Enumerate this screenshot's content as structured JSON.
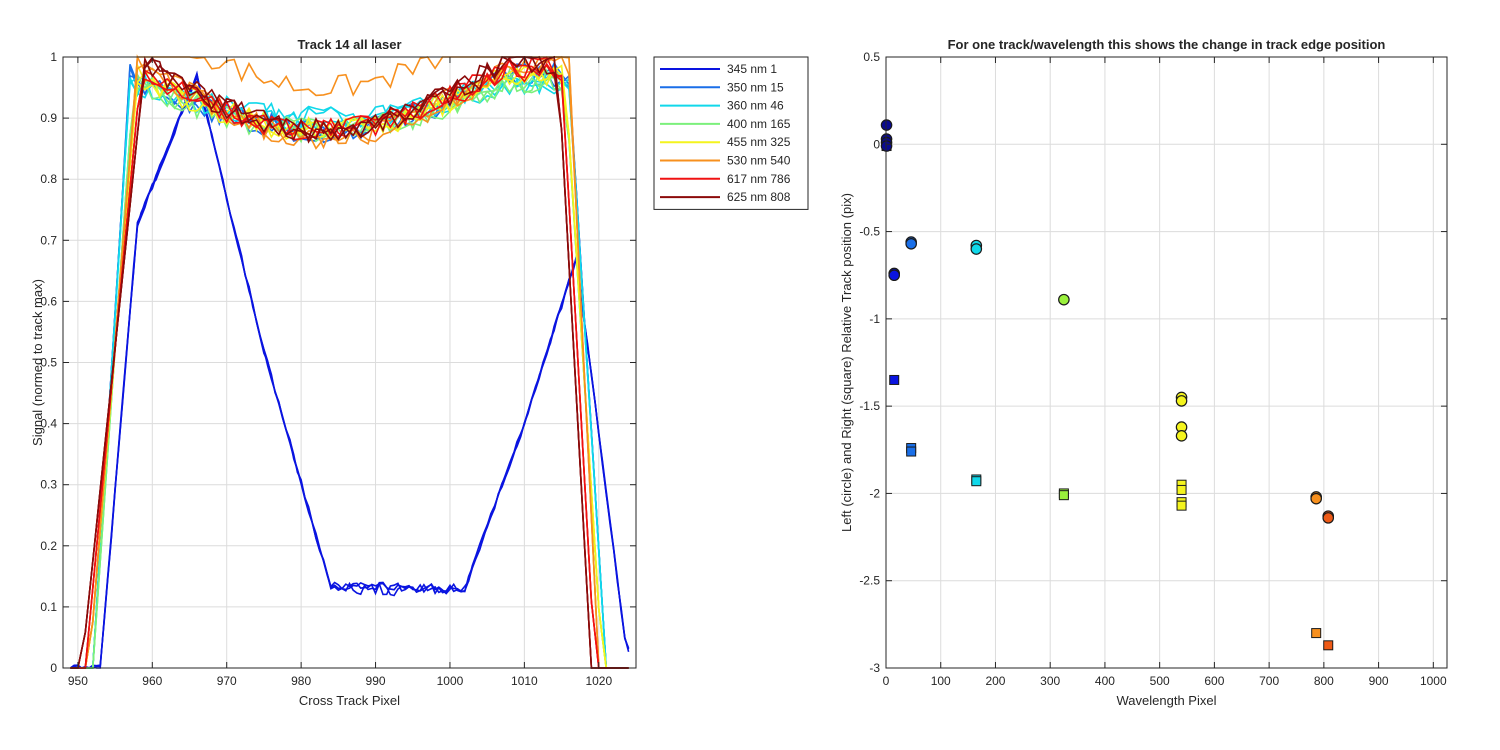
{
  "chart_data": [
    {
      "type": "line",
      "title": "Track 14  all laser",
      "xlabel": "Cross Track Pixel",
      "ylabel": "Signal (normed to track max)",
      "xlim": [
        948,
        1025
      ],
      "ylim": [
        0,
        1
      ],
      "xticks": [
        950,
        960,
        970,
        980,
        990,
        1000,
        1010,
        1020
      ],
      "yticks": [
        0,
        0.1,
        0.2,
        0.3,
        0.4,
        0.5,
        0.6,
        0.7,
        0.8,
        0.9,
        1
      ],
      "grid": true,
      "legend_position": "outside-right",
      "series": [
        {
          "name": "345 nm 1",
          "color": "#0a14e0",
          "profile": {
            "x1": 958,
            "x2": 966,
            "x3": 975,
            "x4": 984,
            "x5": 1002,
            "x6": 1010,
            "x7": 1017,
            "x8": 1023,
            "top": 0.97,
            "bottom": 0.13,
            "x0": 953,
            "xend": 1024,
            "right_peak": 0.67
          }
        },
        {
          "name": "350 nm 15",
          "color": "#1a6fe8",
          "edges": [
            952,
            957,
            1016,
            1021
          ],
          "plateau": 0.88,
          "top": 0.97
        },
        {
          "name": "360 nm 46",
          "color": "#10d8ea",
          "edges": [
            952,
            957,
            1016,
            1021
          ],
          "plateau": 0.9,
          "top": 0.96
        },
        {
          "name": "400 nm 165",
          "color": "#7cf07c",
          "edges": [
            952,
            957.5,
            1015.5,
            1020.5
          ],
          "plateau": 0.88,
          "top": 0.96
        },
        {
          "name": "455 nm 325",
          "color": "#f4f41e",
          "edges": [
            951.5,
            958,
            1015.5,
            1020.5
          ],
          "plateau": 0.88,
          "top": 0.97
        },
        {
          "name": "530 nm 540",
          "color": "#f7901e",
          "edges": [
            951.5,
            958,
            1016,
            1020
          ],
          "plateau": 0.87,
          "top": 0.99
        },
        {
          "name": "617 nm 786",
          "color": "#f01212",
          "edges": [
            951,
            958.5,
            1015,
            1019.5
          ],
          "plateau": 0.88,
          "top": 0.98
        },
        {
          "name": "625 nm 808",
          "color": "#8b0a0a",
          "edges": [
            950.5,
            959,
            1014.5,
            1019
          ],
          "plateau": 0.88,
          "top": 0.99
        }
      ]
    },
    {
      "type": "scatter",
      "title": "For one track/wavelength this shows the change in track edge position",
      "xlabel": "Wavelength Pixel",
      "ylabel": "Left (circle) and Right (square) Relative Track position (pix)",
      "xlim": [
        0,
        1025
      ],
      "ylim": [
        -3,
        0.5
      ],
      "xticks": [
        0,
        100,
        200,
        300,
        400,
        500,
        600,
        700,
        800,
        900,
        1000
      ],
      "yticks": [
        0.5,
        0,
        -0.5,
        -1,
        -1.5,
        -2,
        -2.5,
        -3
      ],
      "ytick_labels": [
        "0.5",
        "0",
        "-0.5",
        "-1",
        "-1.5",
        "-2",
        "-2.5",
        "-3"
      ],
      "grid": true,
      "circles": [
        {
          "x": 1,
          "y": 0.11,
          "color": "#0a0a90"
        },
        {
          "x": 1,
          "y": 0.03,
          "color": "#0a0a90"
        },
        {
          "x": 1,
          "y": 0.01,
          "color": "#0a0a90"
        },
        {
          "x": 1,
          "y": -0.01,
          "color": "#0a0a90"
        },
        {
          "x": 15,
          "y": -0.74,
          "color": "#0a14e0"
        },
        {
          "x": 15,
          "y": -0.75,
          "color": "#0a14e0"
        },
        {
          "x": 46,
          "y": -0.56,
          "color": "#1a6fe8"
        },
        {
          "x": 46,
          "y": -0.57,
          "color": "#1a6fe8"
        },
        {
          "x": 165,
          "y": -0.58,
          "color": "#10d8ea"
        },
        {
          "x": 165,
          "y": -0.6,
          "color": "#10d8ea"
        },
        {
          "x": 325,
          "y": -0.89,
          "color": "#9af03c"
        },
        {
          "x": 540,
          "y": -1.45,
          "color": "#f4f41e"
        },
        {
          "x": 540,
          "y": -1.47,
          "color": "#f4f41e"
        },
        {
          "x": 540,
          "y": -1.62,
          "color": "#f4f41e"
        },
        {
          "x": 540,
          "y": -1.67,
          "color": "#f4f41e"
        },
        {
          "x": 786,
          "y": -2.02,
          "color": "#f7901e"
        },
        {
          "x": 786,
          "y": -2.03,
          "color": "#f7901e"
        },
        {
          "x": 808,
          "y": -2.13,
          "color": "#ee5a16"
        },
        {
          "x": 808,
          "y": -2.14,
          "color": "#ee5a16"
        }
      ],
      "squares": [
        {
          "x": 1,
          "y": -0.01,
          "color": "#0a0a90"
        },
        {
          "x": 15,
          "y": -1.35,
          "color": "#0a14e0"
        },
        {
          "x": 46,
          "y": -1.74,
          "color": "#1a6fe8"
        },
        {
          "x": 46,
          "y": -1.76,
          "color": "#1a6fe8"
        },
        {
          "x": 165,
          "y": -1.92,
          "color": "#10d8ea"
        },
        {
          "x": 165,
          "y": -1.93,
          "color": "#10d8ea"
        },
        {
          "x": 325,
          "y": -2.0,
          "color": "#9af03c"
        },
        {
          "x": 325,
          "y": -2.01,
          "color": "#9af03c"
        },
        {
          "x": 540,
          "y": -1.95,
          "color": "#f4f41e"
        },
        {
          "x": 540,
          "y": -1.98,
          "color": "#f4f41e"
        },
        {
          "x": 540,
          "y": -2.05,
          "color": "#f4f41e"
        },
        {
          "x": 540,
          "y": -2.07,
          "color": "#f4f41e"
        },
        {
          "x": 786,
          "y": -2.8,
          "color": "#f7901e"
        },
        {
          "x": 808,
          "y": -2.87,
          "color": "#ee5a16"
        }
      ]
    }
  ]
}
